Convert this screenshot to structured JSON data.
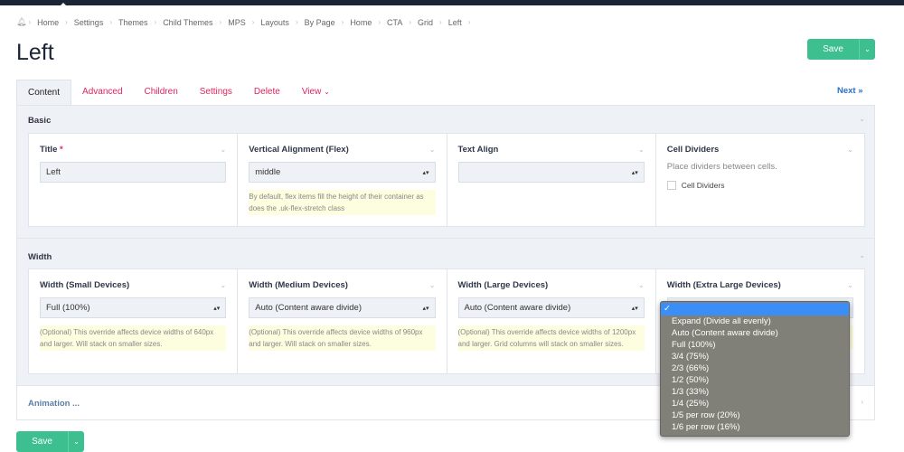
{
  "breadcrumb": [
    "Home",
    "Settings",
    "Themes",
    "Child Themes",
    "MPS",
    "Layouts",
    "By Page",
    "Home",
    "CTA",
    "Grid",
    "Left"
  ],
  "page_title": "Left",
  "save_label": "Save",
  "tabs": [
    "Content",
    "Advanced",
    "Children",
    "Settings",
    "Delete",
    "View"
  ],
  "active_tab": "Content",
  "next_label": "Next »",
  "basic": {
    "title": "Basic",
    "title_field": {
      "label": "Title",
      "required": "*",
      "value": "Left"
    },
    "valign": {
      "label": "Vertical Alignment (Flex)",
      "value": "middle",
      "help": "By default, flex items fill the height of their container as does the .uk-flex-stretch class"
    },
    "text_align": {
      "label": "Text Align",
      "value": ""
    },
    "cell_dividers": {
      "label": "Cell Dividers",
      "desc": "Place dividers between cells.",
      "checkbox_label": "Cell Dividers",
      "checked": false
    }
  },
  "width": {
    "title": "Width",
    "small": {
      "label": "Width (Small Devices)",
      "value": "Full (100%)",
      "help": "(Optional) This override affects device widths of 640px and larger. Will stack on smaller sizes."
    },
    "medium": {
      "label": "Width (Medium Devices)",
      "value": "Auto (Content aware divide)",
      "help": "(Optional) This override affects device widths of 960px and larger. Will stack on smaller sizes."
    },
    "large": {
      "label": "Width (Large Devices)",
      "value": "Auto (Content aware divide)",
      "help": "(Optional) This override affects device widths of 1200px and larger. Grid columns will stack on smaller sizes."
    },
    "xlarge": {
      "label": "Width (Extra Large Devices)",
      "selected_mark": "✓",
      "options": [
        "Expand (Divide all evenly)",
        "Auto (Content aware divide)",
        "Full (100%)",
        "3/4 (75%)",
        "2/3 (66%)",
        "1/2 (50%)",
        "1/3 (33%)",
        "1/4 (25%)",
        "1/5 per row (20%)",
        "1/6 per row (16%)"
      ]
    }
  },
  "animation_label": "Animation ...",
  "colors": {
    "accent": "#e0245e",
    "save": "#3dbf8f",
    "link": "#2a6fc9",
    "topbar": "#1c2536",
    "highlight": "#3a8ef6"
  }
}
